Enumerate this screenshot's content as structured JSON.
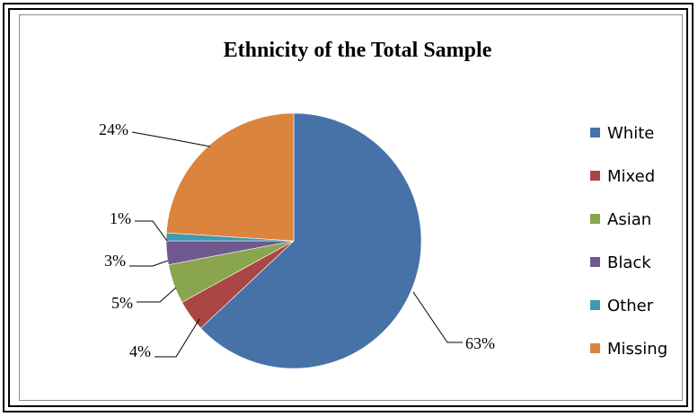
{
  "chart_data": {
    "type": "pie",
    "title": "Ethnicity of the Total Sample",
    "categories": [
      "White",
      "Mixed",
      "Asian",
      "Black",
      "Other",
      "Missing"
    ],
    "values": [
      63,
      4,
      5,
      3,
      1,
      24
    ],
    "labels": [
      "63%",
      "4%",
      "5%",
      "3%",
      "1%",
      "24%"
    ],
    "colors": [
      "#4672a8",
      "#aa4643",
      "#89a54e",
      "#71588f",
      "#4198af",
      "#db843d"
    ],
    "legend_position": "right"
  }
}
